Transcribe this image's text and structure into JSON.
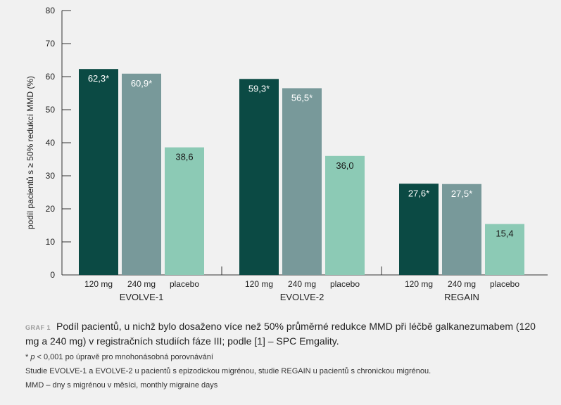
{
  "chart_data": {
    "type": "bar",
    "ylabel": "podíl pacientů s ≥ 50% redukcí MMD (%)",
    "ylim": [
      0,
      80
    ],
    "yticks": [
      0,
      10,
      20,
      30,
      40,
      50,
      60,
      70,
      80
    ],
    "categories": [
      "EVOLVE-1",
      "EVOLVE-2",
      "REGAIN"
    ],
    "series": [
      {
        "name": "120 mg",
        "color": "#0b4a44",
        "values": [
          62.3,
          59.3,
          27.6
        ],
        "labels": [
          "62,3*",
          "59,3*",
          "27,6*"
        ]
      },
      {
        "name": "240 mg",
        "color": "#78999a",
        "values": [
          60.9,
          56.5,
          27.5
        ],
        "labels": [
          "60,9*",
          "56,5*",
          "27,5*"
        ]
      },
      {
        "name": "placebo",
        "color": "#8ccab5",
        "values": [
          38.6,
          36.0,
          15.4
        ],
        "labels": [
          "38,6",
          "36,0",
          "15,4"
        ]
      }
    ],
    "grid": false,
    "legend": "none"
  },
  "caption": {
    "label": "GRAF 1",
    "title": "Podíl pacientů, u nichž bylo dosaženo více než 50% průměrné redukce MMD při léčbě galkanezumabem (120 mg a 240 mg) v registračních studiích fáze III; podle [1] – SPC Emgality.",
    "note_p": "p",
    "note_rest": " < 0,001 po úpravě pro mnohonásobná porovnávání",
    "note_asterisk": "* ",
    "note2": "Studie EVOLVE-1 a EVOLVE-2 u pacientů s epizodickou migrénou, studie REGAIN u pacientů s chronickou migrénou.",
    "note3": "MMD – dny s migrénou v měsíci, monthly migraine days"
  }
}
